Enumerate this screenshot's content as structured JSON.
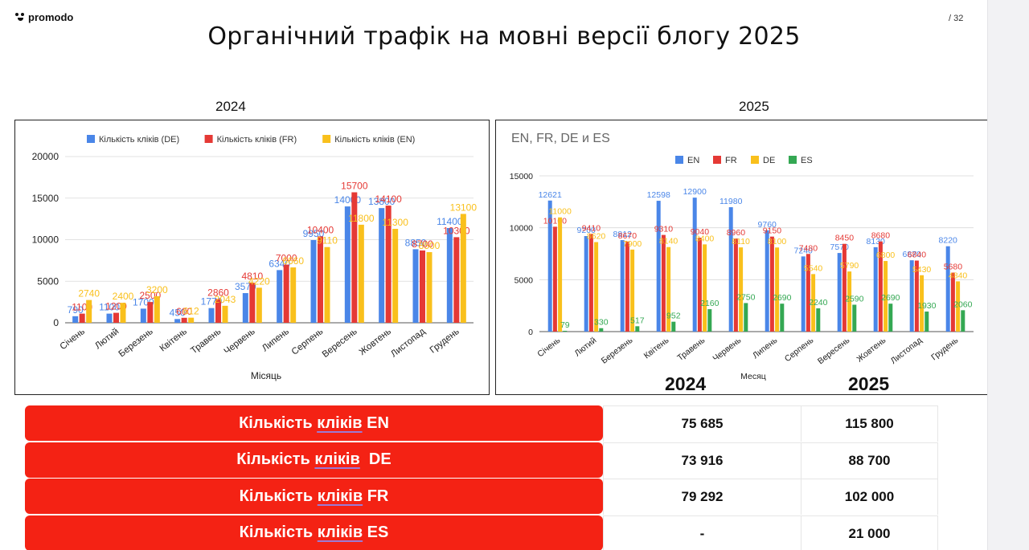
{
  "header": {
    "logo_text": "promodo",
    "page_num": "/ 32",
    "title": "Органічний трафік на мовні версії блогу 2025"
  },
  "labels": {
    "year_left": "2024",
    "year_right": "2025",
    "table_year_2024": "2024",
    "table_year_2025": "2025"
  },
  "chart_data": [
    {
      "type": "bar",
      "title": "",
      "xlabel": "Місяць",
      "ylabel": "",
      "ylim": [
        0,
        20000
      ],
      "yticks": [
        "0",
        "5000",
        "10000",
        "15000",
        "20000"
      ],
      "categories": [
        "Січень",
        "Лютий",
        "Березень",
        "Квітень",
        "Травень",
        "Червень",
        "Липень",
        "Серпень",
        "Вересень",
        "Жовтень",
        "Листопад",
        "Грудень"
      ],
      "legend_position": "top",
      "series": [
        {
          "name": "Кількість кліків (DE)",
          "color": "#4a86e8",
          "values": [
            790,
            1100,
            1700,
            450,
            1770,
            3570,
            6340,
            9950,
            14000,
            13800,
            8850,
            11400
          ],
          "labels": [
            "790",
            "1100",
            "1700",
            "450",
            "1770",
            "3570",
            "6340",
            "9950",
            "14000",
            "13800",
            "8850",
            "11400"
          ]
        },
        {
          "name": "Кількість кліків (FR)",
          "color": "#e53935",
          "values": [
            1100,
            1200,
            2500,
            600,
            2860,
            4810,
            7000,
            10400,
            15700,
            14100,
            8700,
            10300
          ],
          "labels": [
            "1100",
            "1200",
            "2500",
            "600",
            "2860",
            "4810",
            "7000",
            "10400",
            "15700",
            "14100",
            "8700",
            "10300"
          ]
        },
        {
          "name": "Кількість кліків (EN)",
          "color": "#f9c01c",
          "values": [
            2740,
            2400,
            3200,
            612,
            2043,
            4220,
            6660,
            9110,
            11800,
            11300,
            8500,
            13100
          ],
          "labels": [
            "2740",
            "2400",
            "3200",
            "612",
            "2043",
            "4220",
            "6660",
            "9110",
            "11800",
            "11300",
            "8500",
            "13100"
          ]
        }
      ]
    },
    {
      "type": "bar",
      "title": "EN, FR, DE и ES",
      "xlabel": "Месяц",
      "ylabel": "",
      "ylim": [
        0,
        15000
      ],
      "yticks": [
        "0",
        "5000",
        "10000",
        "15000"
      ],
      "categories": [
        "Січень",
        "Лютий",
        "Березень",
        "Квітень",
        "Травень",
        "Червень",
        "Липень",
        "Серпень",
        "Вересень",
        "Жовтень",
        "Листопад",
        "Грудень"
      ],
      "legend_position": "top",
      "series": [
        {
          "name": "EN",
          "color": "#4a86e8",
          "values": [
            12621,
            9200,
            8812,
            12598,
            12900,
            11980,
            9760,
            7240,
            7570,
            8130,
            6870,
            8220
          ],
          "labels": [
            "12621",
            "9200",
            "8812",
            "12598",
            "12900",
            "11980",
            "9760",
            "7240",
            "7570",
            "8130",
            "6870",
            "8220"
          ]
        },
        {
          "name": "FR",
          "color": "#e53935",
          "values": [
            10100,
            9410,
            8670,
            9310,
            9040,
            8960,
            9150,
            7480,
            8450,
            8680,
            6840,
            5680
          ],
          "labels": [
            "10100",
            "9410",
            "8670",
            "9310",
            "9040",
            "8960",
            "9150",
            "7480",
            "8450",
            "8680",
            "6840",
            "5680"
          ]
        },
        {
          "name": "DE",
          "color": "#f9c01c",
          "values": [
            11000,
            8620,
            7900,
            8140,
            8400,
            8110,
            8100,
            5540,
            5790,
            6800,
            5430,
            4840
          ],
          "labels": [
            "11000",
            "8620",
            "7900",
            "8140",
            "8400",
            "8110",
            "8100",
            "5540",
            "5790",
            "6800",
            "5430",
            "4840"
          ]
        },
        {
          "name": "ES",
          "color": "#34a853",
          "values": [
            79,
            330,
            517,
            952,
            2160,
            2750,
            2690,
            2240,
            2590,
            2690,
            1930,
            2060
          ],
          "labels": [
            "79",
            "330",
            "517",
            "952",
            "2160",
            "2750",
            "2690",
            "2240",
            "2590",
            "2690",
            "1930",
            "2060"
          ]
        }
      ]
    }
  ],
  "table": {
    "rows": [
      {
        "label_pre": "Кількість ",
        "label_u": "кліків",
        "label_post": " EN",
        "v2024": "75 685",
        "v2025": "115 800"
      },
      {
        "label_pre": "Кількість ",
        "label_u": "кліків",
        "label_post": "  DE",
        "v2024": "73 916",
        "v2025": "88 700"
      },
      {
        "label_pre": "Кількість ",
        "label_u": "кліків",
        "label_post": " FR",
        "v2024": "79 292",
        "v2025": "102 000"
      },
      {
        "label_pre": "Кількість ",
        "label_u": "кліків",
        "label_post": " ES",
        "v2024": "-",
        "v2025": "21 000"
      }
    ]
  }
}
